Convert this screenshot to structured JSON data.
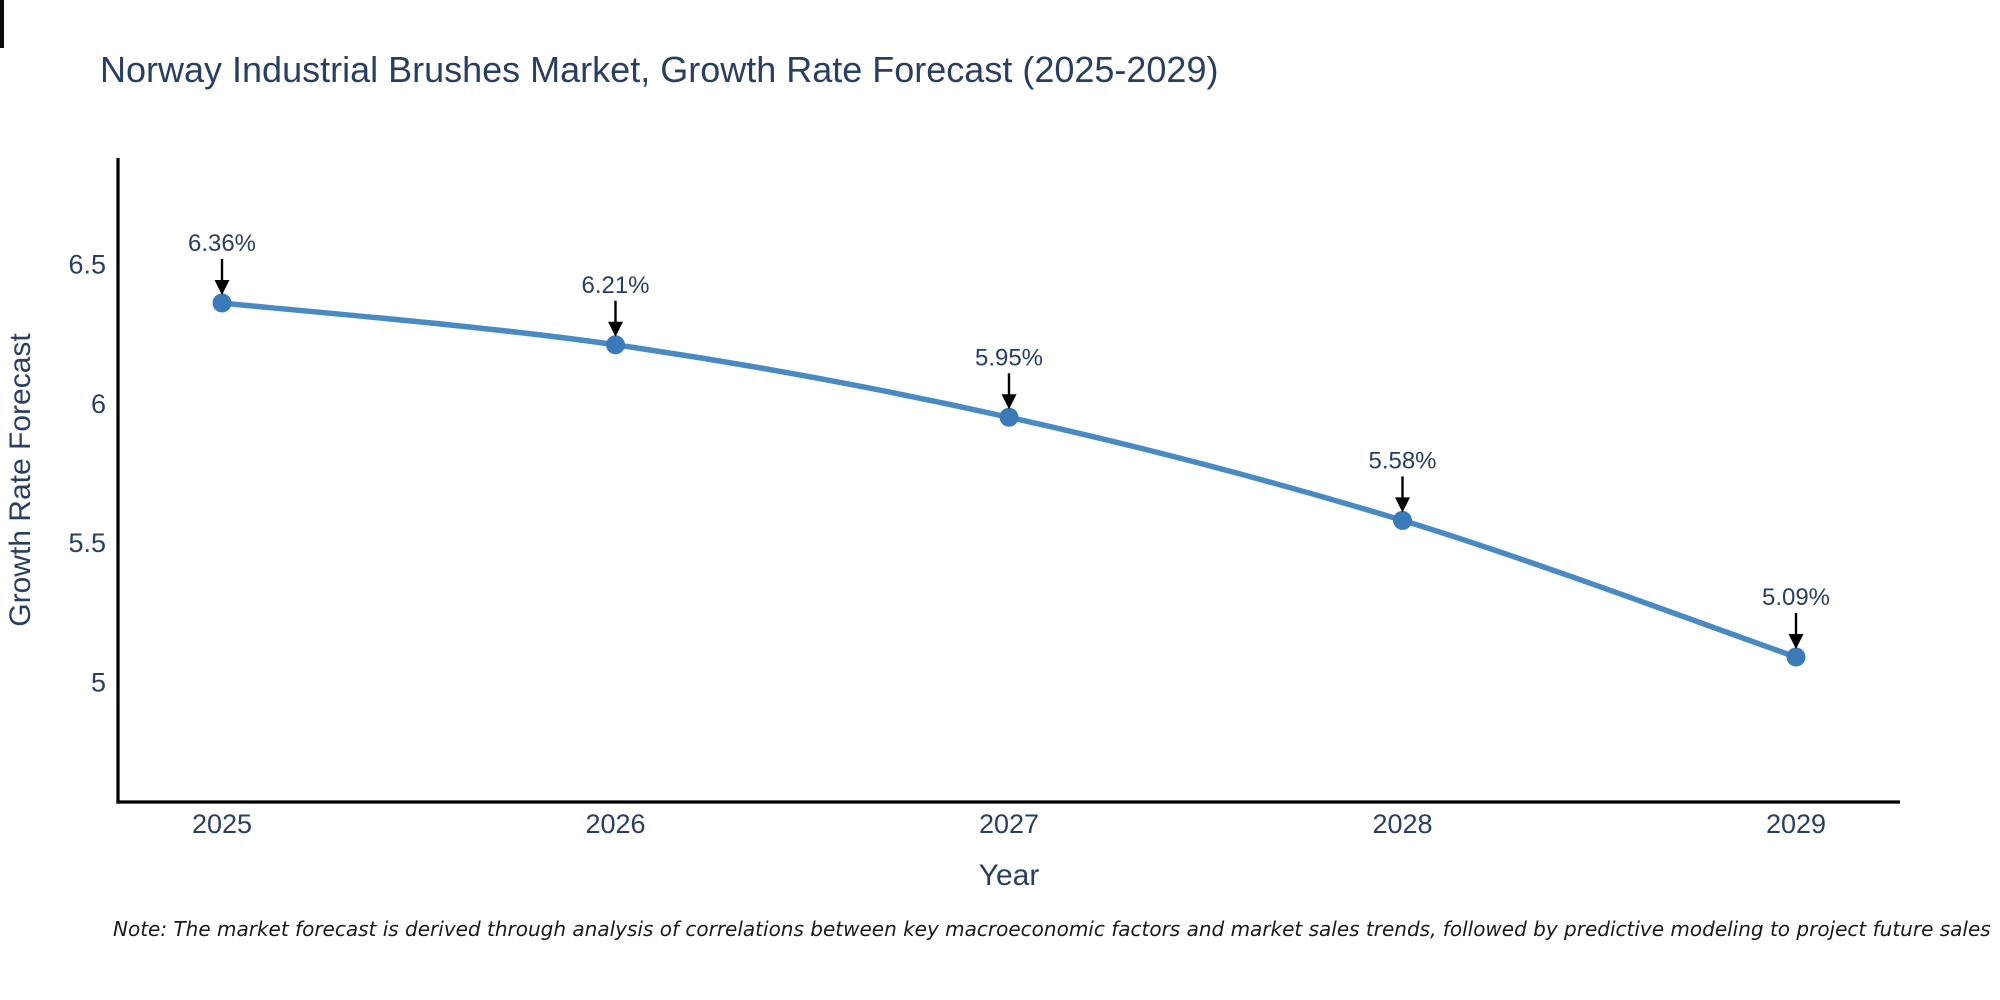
{
  "header": {
    "title": "Norway Industrial Brushes Market, Growth Rate Forecast (2025-2029)"
  },
  "footnote": {
    "text": "Note: The market forecast is derived through analysis of correlations between key macroeconomic factors and market sales trends, followed by predictive modeling to project future sales"
  },
  "chart_data": {
    "type": "line",
    "title": "Norway Industrial Brushes Market, Growth Rate Forecast (2025-2029)",
    "xlabel": "Year",
    "ylabel": "Growth Rate Forecast",
    "categories": [
      "2025",
      "2026",
      "2027",
      "2028",
      "2029"
    ],
    "values": [
      6.36,
      6.21,
      5.95,
      5.58,
      5.09
    ],
    "point_labels": [
      "6.36%",
      "6.21%",
      "5.95%",
      "5.58%",
      "5.09%"
    ],
    "series_name": "Growth Rate Forecast",
    "yticks": {
      "values": [
        6.5,
        6,
        5.5,
        5
      ],
      "labels": [
        "6.5",
        "6",
        "5.5",
        "5"
      ]
    },
    "ylim": [
      4.57,
      6.88
    ],
    "grid": false,
    "legend_position": "none",
    "line_shape": "spline",
    "annotations_have_arrows": true,
    "colors": {
      "line": "#4a8ac2",
      "marker": "#3a7ab8",
      "axis": "#000000",
      "text": "#2a3f5f",
      "arrow": "#000000",
      "note_text": "#1a1a1a",
      "background": "#ffffff"
    }
  }
}
